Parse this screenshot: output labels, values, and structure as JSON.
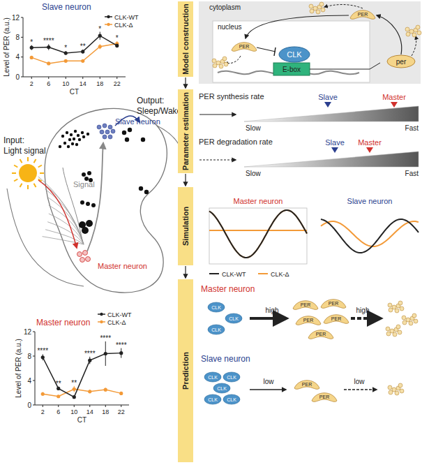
{
  "chart_data": [
    {
      "type": "line",
      "title": "Slave neuron",
      "x_label": "CT",
      "y_label": "Level of PER (a.u.)",
      "x": [
        2,
        6,
        10,
        14,
        18,
        22
      ],
      "xlim": [
        0,
        24
      ],
      "xticks": [
        2,
        6,
        10,
        14,
        18,
        22
      ],
      "ylim": [
        0,
        12
      ],
      "yticks": [
        0,
        4,
        8,
        12
      ],
      "legend": "upper right",
      "series": [
        {
          "name": "CLK-WT",
          "color": "#222222",
          "marker": "circle",
          "values": [
            5.9,
            6.0,
            4.8,
            5.1,
            8.3,
            6.3
          ],
          "errors": [
            0.5,
            0.6,
            0.4,
            0.4,
            0.8,
            0.4
          ]
        },
        {
          "name": "CLK-Δ",
          "color": "#f39a38",
          "marker": "circle",
          "values": [
            3.9,
            2.7,
            3.2,
            3.2,
            6.1,
            6.7
          ],
          "errors": [
            0.3,
            0.2,
            0.3,
            0.3,
            0.5,
            0.5
          ]
        }
      ],
      "significance": [
        "*",
        "****",
        "*",
        "**",
        "*",
        "*"
      ]
    },
    {
      "type": "line",
      "title": "Master neuron",
      "x_label": "CT",
      "y_label": "Level of PER (a.u.)",
      "x": [
        2,
        6,
        10,
        14,
        18,
        22
      ],
      "xlim": [
        0,
        24
      ],
      "xticks": [
        2,
        6,
        10,
        14,
        18,
        22
      ],
      "ylim": [
        0,
        12
      ],
      "yticks": [
        0,
        4,
        8,
        12
      ],
      "legend": "upper right",
      "series": [
        {
          "name": "CLK-WT",
          "color": "#222222",
          "marker": "circle",
          "values": [
            7.8,
            2.7,
            1.3,
            7.3,
            8.4,
            8.5
          ],
          "errors": [
            0.5,
            0.3,
            0.2,
            0.6,
            2.0,
            0.8
          ]
        },
        {
          "name": "CLK-Δ",
          "color": "#f39a38",
          "marker": "circle",
          "values": [
            1.8,
            1.4,
            2.6,
            2.2,
            2.5,
            1.9
          ],
          "errors": [
            0.3,
            0.2,
            0.5,
            0.3,
            0.3,
            0.2
          ]
        }
      ],
      "significance": [
        "****",
        "**",
        "**",
        "****",
        "****",
        "****"
      ]
    }
  ],
  "diagram": {
    "left": {
      "input": [
        "Input:",
        "Light signal"
      ],
      "output": [
        "Output:",
        "Sleep/Wake"
      ],
      "slave_label": "Slave neuron",
      "signal_label": "Signal",
      "master_label": "Master neuron"
    },
    "steps": [
      "Model construction",
      "Parameter estimation",
      "Simulation",
      "Prediction"
    ],
    "model": {
      "cytoplasm": "cytoplasm",
      "nucleus": "nucleus",
      "per_protein": "PER",
      "clk": "CLK",
      "ebox": "E-box",
      "gene": "per"
    },
    "parameters": [
      {
        "label": "PER synthesis rate",
        "slave": "Slave",
        "master": "Master",
        "slow": "Slow",
        "fast": "Fast"
      },
      {
        "label": "PER degradation rate",
        "slave": "Slave",
        "master": "Master",
        "slow": "Slow",
        "fast": "Fast"
      }
    ],
    "simulation": {
      "master": "Master neuron",
      "slave": "Slave neuron",
      "legend": [
        "CLK-WT",
        "CLK-Δ"
      ]
    },
    "prediction": [
      {
        "label": "Master neuron",
        "clk": "CLK",
        "rate": "high",
        "per": "PER",
        "deg_rate": "high"
      },
      {
        "label": "Slave neuron",
        "clk": "CLK",
        "rate": "low",
        "per": "PER",
        "deg_rate": "low"
      }
    ]
  }
}
